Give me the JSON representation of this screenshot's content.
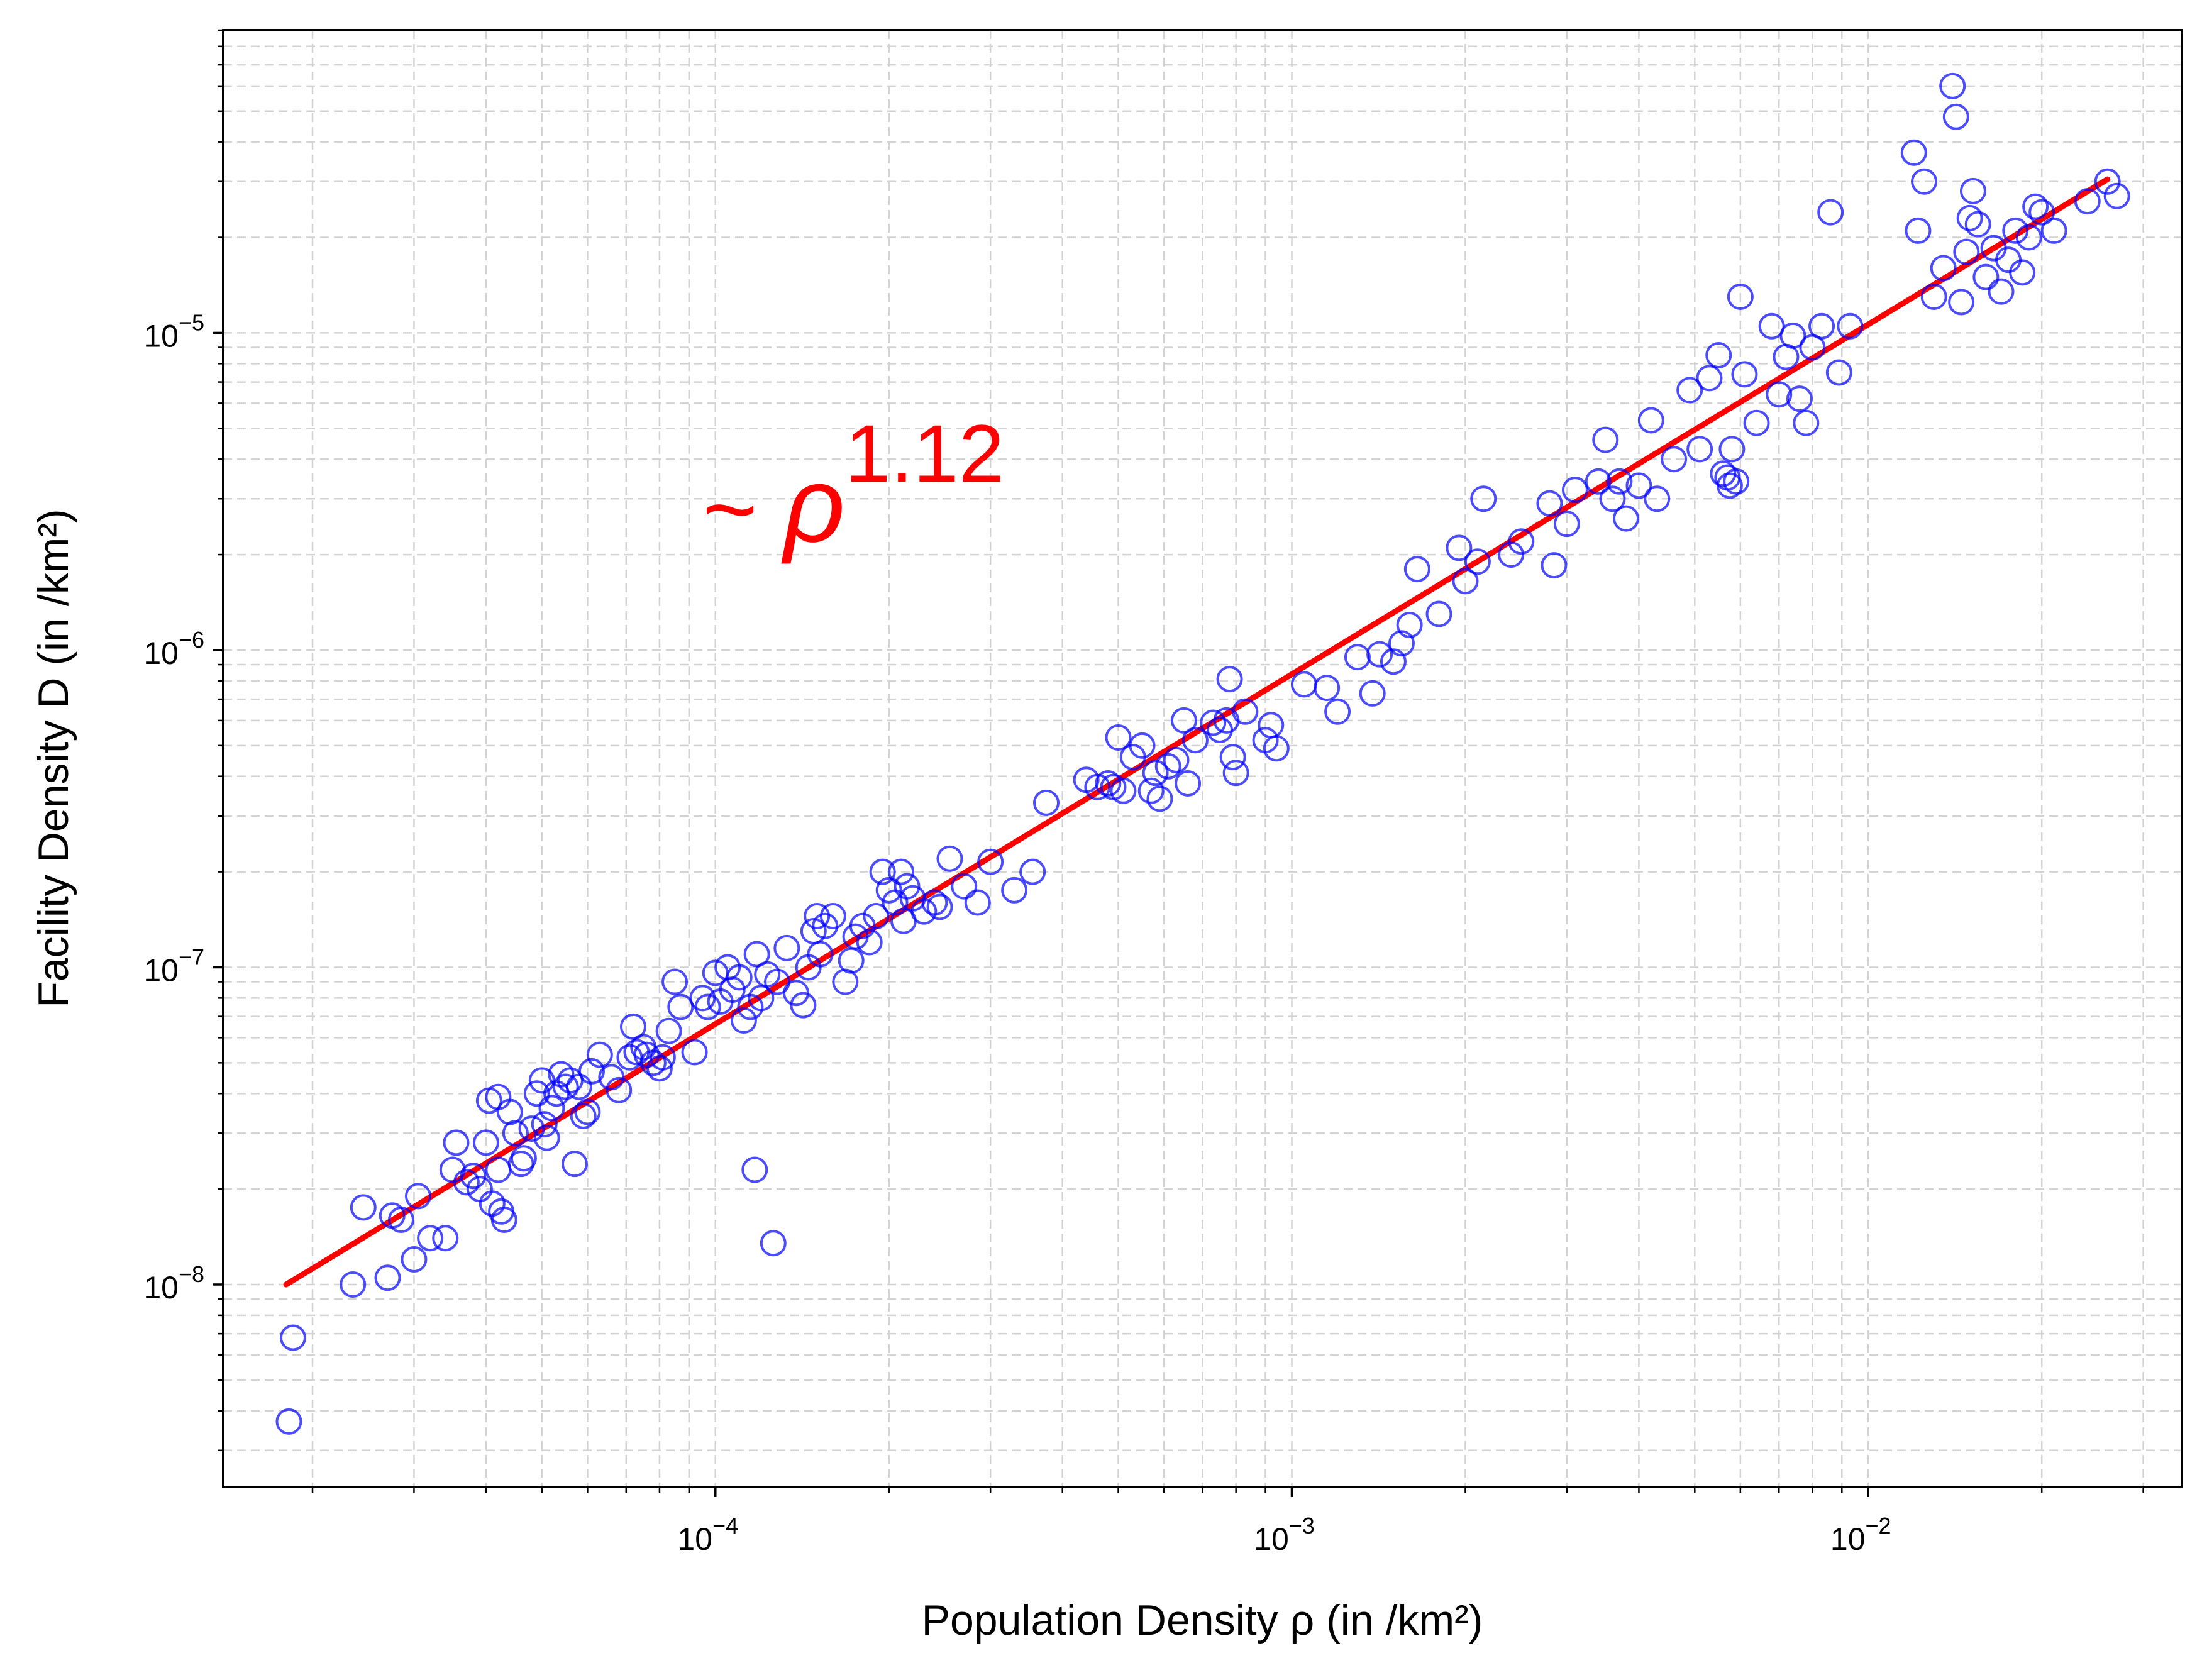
{
  "chart_data": {
    "type": "scatter",
    "title": "",
    "xlabel": "Population Density ρ (in /km²)",
    "ylabel": "Facility Density D (in /km²)",
    "xscale": "log",
    "yscale": "log",
    "xlim": [
      1.4e-05,
      0.035
    ],
    "ylim": [
      2.3e-09,
      9e-05
    ],
    "grid": "both (major and minor), dashed light gray",
    "x_ticks": [
      {
        "value": 0.0001,
        "base": "10",
        "exp": "−4"
      },
      {
        "value": 0.001,
        "base": "10",
        "exp": "−3"
      },
      {
        "value": 0.01,
        "base": "10",
        "exp": "−2"
      }
    ],
    "y_ticks": [
      {
        "value": 1e-08,
        "base": "10",
        "exp": "−8"
      },
      {
        "value": 1e-07,
        "base": "10",
        "exp": "−7"
      },
      {
        "value": 1e-06,
        "base": "10",
        "exp": "−6"
      },
      {
        "value": 1e-05,
        "base": "10",
        "exp": "−5"
      }
    ],
    "annotation": {
      "prefix": "~ ",
      "symbol": "ρ",
      "exponent": "1.12",
      "color": "#ff0000",
      "x": 9.5e-05,
      "y": 2.2e-06
    },
    "series": [
      {
        "marker": "hollow-circle",
        "color": "#0000ff",
        "points": [
          [
            1.82e-05,
            3.7e-09
          ],
          [
            1.85e-05,
            6.8e-09
          ],
          [
            2.35e-05,
            1e-08
          ],
          [
            2.45e-05,
            1.75e-08
          ],
          [
            2.7e-05,
            1.05e-08
          ],
          [
            2.75e-05,
            1.65e-08
          ],
          [
            2.85e-05,
            1.6e-08
          ],
          [
            3e-05,
            1.2e-08
          ],
          [
            3.05e-05,
            1.9e-08
          ],
          [
            3.2e-05,
            1.4e-08
          ],
          [
            3.4e-05,
            1.4e-08
          ],
          [
            3.5e-05,
            2.3e-08
          ],
          [
            3.55e-05,
            2.8e-08
          ],
          [
            3.7e-05,
            2.1e-08
          ],
          [
            3.8e-05,
            2.2e-08
          ],
          [
            3.9e-05,
            2e-08
          ],
          [
            4e-05,
            2.8e-08
          ],
          [
            4.05e-05,
            3.8e-08
          ],
          [
            4.1e-05,
            1.8e-08
          ],
          [
            4.2e-05,
            2.3e-08
          ],
          [
            4.2e-05,
            3.9e-08
          ],
          [
            4.25e-05,
            1.7e-08
          ],
          [
            4.3e-05,
            1.6e-08
          ],
          [
            4.4e-05,
            3.5e-08
          ],
          [
            4.5e-05,
            3e-08
          ],
          [
            4.6e-05,
            2.4e-08
          ],
          [
            4.65e-05,
            2.5e-08
          ],
          [
            4.8e-05,
            3.1e-08
          ],
          [
            4.9e-05,
            4e-08
          ],
          [
            5e-05,
            4.4e-08
          ],
          [
            5.05e-05,
            3.2e-08
          ],
          [
            5.1e-05,
            2.9e-08
          ],
          [
            5.2e-05,
            3.6e-08
          ],
          [
            5.3e-05,
            4e-08
          ],
          [
            5.4e-05,
            4.6e-08
          ],
          [
            5.5e-05,
            4.2e-08
          ],
          [
            5.6e-05,
            4.4e-08
          ],
          [
            5.7e-05,
            2.4e-08
          ],
          [
            5.8e-05,
            4.2e-08
          ],
          [
            5.9e-05,
            3.4e-08
          ],
          [
            6e-05,
            3.5e-08
          ],
          [
            6.1e-05,
            4.7e-08
          ],
          [
            6.3e-05,
            5.3e-08
          ],
          [
            6.6e-05,
            4.5e-08
          ],
          [
            6.8e-05,
            4.1e-08
          ],
          [
            7.1e-05,
            5.2e-08
          ],
          [
            7.2e-05,
            6.5e-08
          ],
          [
            7.3e-05,
            5.4e-08
          ],
          [
            7.5e-05,
            5.6e-08
          ],
          [
            7.6e-05,
            5.3e-08
          ],
          [
            7.8e-05,
            5e-08
          ],
          [
            8e-05,
            4.8e-08
          ],
          [
            8.1e-05,
            5.2e-08
          ],
          [
            8.3e-05,
            6.3e-08
          ],
          [
            8.5e-05,
            9e-08
          ],
          [
            8.7e-05,
            7.5e-08
          ],
          [
            9.2e-05,
            5.4e-08
          ],
          [
            9.5e-05,
            8e-08
          ],
          [
            9.7e-05,
            7.5e-08
          ],
          [
            0.0001,
            9.6e-08
          ],
          [
            0.000102,
            7.8e-08
          ],
          [
            0.000105,
            1e-07
          ],
          [
            0.000107,
            8.5e-08
          ],
          [
            0.00011,
            9.3e-08
          ],
          [
            0.000112,
            6.8e-08
          ],
          [
            0.000115,
            7.5e-08
          ],
          [
            0.000117,
            2.3e-08
          ],
          [
            0.000118,
            1.1e-07
          ],
          [
            0.00012,
            8e-08
          ],
          [
            0.000123,
            9.5e-08
          ],
          [
            0.000126,
            1.35e-08
          ],
          [
            0.000128,
            9e-08
          ],
          [
            0.000133,
            1.15e-07
          ],
          [
            0.000138,
            8.3e-08
          ],
          [
            0.000142,
            7.6e-08
          ],
          [
            0.000145,
            1e-07
          ],
          [
            0.000148,
            1.3e-07
          ],
          [
            0.00015,
            1.45e-07
          ],
          [
            0.000152,
            1.1e-07
          ],
          [
            0.000155,
            1.35e-07
          ],
          [
            0.00016,
            1.45e-07
          ],
          [
            0.000168,
            9e-08
          ],
          [
            0.000172,
            1.05e-07
          ],
          [
            0.000175,
            1.25e-07
          ],
          [
            0.00018,
            1.35e-07
          ],
          [
            0.000185,
            1.2e-07
          ],
          [
            0.00019,
            1.45e-07
          ],
          [
            0.000195,
            2e-07
          ],
          [
            0.0002,
            1.75e-07
          ],
          [
            0.000205,
            1.6e-07
          ],
          [
            0.00021,
            2e-07
          ],
          [
            0.000212,
            1.4e-07
          ],
          [
            0.000215,
            1.8e-07
          ],
          [
            0.00022,
            1.65e-07
          ],
          [
            0.00023,
            1.5e-07
          ],
          [
            0.00024,
            1.6e-07
          ],
          [
            0.000245,
            1.55e-07
          ],
          [
            0.000255,
            2.2e-07
          ],
          [
            0.00027,
            1.8e-07
          ],
          [
            0.000285,
            1.6e-07
          ],
          [
            0.0003,
            2.15e-07
          ],
          [
            0.00033,
            1.75e-07
          ],
          [
            0.000355,
            2e-07
          ],
          [
            0.000375,
            3.3e-07
          ],
          [
            0.00044,
            3.9e-07
          ],
          [
            0.00046,
            3.7e-07
          ],
          [
            0.00048,
            3.8e-07
          ],
          [
            0.00049,
            3.7e-07
          ],
          [
            0.0005,
            5.3e-07
          ],
          [
            0.00051,
            3.6e-07
          ],
          [
            0.00053,
            4.6e-07
          ],
          [
            0.00055,
            5e-07
          ],
          [
            0.00057,
            3.6e-07
          ],
          [
            0.00058,
            4.1e-07
          ],
          [
            0.00059,
            3.4e-07
          ],
          [
            0.00061,
            4.3e-07
          ],
          [
            0.00063,
            4.5e-07
          ],
          [
            0.00065,
            6e-07
          ],
          [
            0.00066,
            3.8e-07
          ],
          [
            0.00068,
            5.2e-07
          ],
          [
            0.00073,
            5.9e-07
          ],
          [
            0.00075,
            5.6e-07
          ],
          [
            0.00077,
            6e-07
          ],
          [
            0.00078,
            8.1e-07
          ],
          [
            0.00079,
            4.6e-07
          ],
          [
            0.0008,
            4.1e-07
          ],
          [
            0.00083,
            6.4e-07
          ],
          [
            0.0009,
            5.2e-07
          ],
          [
            0.00092,
            5.8e-07
          ],
          [
            0.00094,
            4.9e-07
          ],
          [
            0.00105,
            7.8e-07
          ],
          [
            0.00115,
            7.6e-07
          ],
          [
            0.0012,
            6.4e-07
          ],
          [
            0.0013,
            9.5e-07
          ],
          [
            0.00138,
            7.3e-07
          ],
          [
            0.00142,
            9.7e-07
          ],
          [
            0.0015,
            9.2e-07
          ],
          [
            0.00155,
            1.05e-06
          ],
          [
            0.0016,
            1.2e-06
          ],
          [
            0.00165,
            1.8e-06
          ],
          [
            0.0018,
            1.3e-06
          ],
          [
            0.00195,
            2.1e-06
          ],
          [
            0.002,
            1.65e-06
          ],
          [
            0.0021,
            1.9e-06
          ],
          [
            0.00215,
            3e-06
          ],
          [
            0.0024,
            2e-06
          ],
          [
            0.0025,
            2.2e-06
          ],
          [
            0.0028,
            2.9e-06
          ],
          [
            0.00285,
            1.85e-06
          ],
          [
            0.003,
            2.5e-06
          ],
          [
            0.0031,
            3.2e-06
          ],
          [
            0.0034,
            3.4e-06
          ],
          [
            0.0035,
            4.6e-06
          ],
          [
            0.0036,
            3e-06
          ],
          [
            0.0037,
            3.4e-06
          ],
          [
            0.0038,
            2.6e-06
          ],
          [
            0.004,
            3.3e-06
          ],
          [
            0.0042,
            5.3e-06
          ],
          [
            0.0043,
            3e-06
          ],
          [
            0.0046,
            4e-06
          ],
          [
            0.0049,
            6.6e-06
          ],
          [
            0.0051,
            4.3e-06
          ],
          [
            0.0053,
            7.2e-06
          ],
          [
            0.0055,
            8.5e-06
          ],
          [
            0.0056,
            3.6e-06
          ],
          [
            0.0057,
            3.5e-06
          ],
          [
            0.00575,
            3.3e-06
          ],
          [
            0.0058,
            4.3e-06
          ],
          [
            0.0059,
            3.4e-06
          ],
          [
            0.006,
            1.3e-05
          ],
          [
            0.0061,
            7.4e-06
          ],
          [
            0.0064,
            5.2e-06
          ],
          [
            0.0068,
            1.05e-05
          ],
          [
            0.007,
            6.4e-06
          ],
          [
            0.0072,
            8.4e-06
          ],
          [
            0.0074,
            9.8e-06
          ],
          [
            0.0076,
            6.2e-06
          ],
          [
            0.0078,
            5.2e-06
          ],
          [
            0.008,
            9e-06
          ],
          [
            0.0083,
            1.05e-05
          ],
          [
            0.0086,
            2.4e-05
          ],
          [
            0.0089,
            7.5e-06
          ],
          [
            0.0093,
            1.05e-05
          ],
          [
            0.012,
            3.7e-05
          ],
          [
            0.0122,
            2.1e-05
          ],
          [
            0.0125,
            3e-05
          ],
          [
            0.013,
            1.3e-05
          ],
          [
            0.0135,
            1.6e-05
          ],
          [
            0.014,
            6e-05
          ],
          [
            0.0142,
            4.8e-05
          ],
          [
            0.0145,
            1.25e-05
          ],
          [
            0.0148,
            1.8e-05
          ],
          [
            0.015,
            2.3e-05
          ],
          [
            0.0152,
            2.8e-05
          ],
          [
            0.0155,
            2.2e-05
          ],
          [
            0.016,
            1.5e-05
          ],
          [
            0.0165,
            1.85e-05
          ],
          [
            0.017,
            1.35e-05
          ],
          [
            0.0175,
            1.7e-05
          ],
          [
            0.018,
            2.1e-05
          ],
          [
            0.0185,
            1.55e-05
          ],
          [
            0.019,
            2e-05
          ],
          [
            0.0195,
            2.5e-05
          ],
          [
            0.02,
            2.4e-05
          ],
          [
            0.021,
            2.1e-05
          ],
          [
            0.024,
            2.6e-05
          ],
          [
            0.026,
            3e-05
          ],
          [
            0.027,
            2.7e-05
          ]
        ]
      }
    ],
    "fit_line": {
      "color": "#ff0000",
      "exponent": 1.12,
      "x": [
        1.8e-05,
        0.026
      ],
      "y": [
        1e-08,
        3.05e-05
      ]
    }
  }
}
